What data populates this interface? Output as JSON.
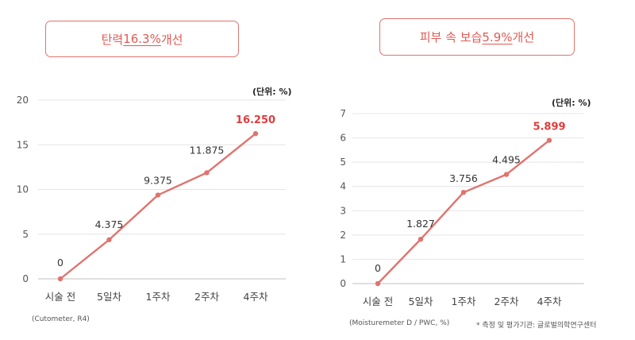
{
  "colors": {
    "accent": "#e0736e",
    "highlight": "#e03c3c"
  },
  "chart_data": [
    {
      "type": "line",
      "header": {
        "prefix": "탄력 ",
        "highlight": "16.3%",
        "suffix": " 개선"
      },
      "unit_label": "(단위: %)",
      "source": "(Cutometer, R4)",
      "categories": [
        "시술 전",
        "5일차",
        "1주차",
        "2주차",
        "4주차"
      ],
      "values": [
        0,
        4.375,
        9.375,
        11.875,
        16.25
      ],
      "data_labels": [
        "0",
        "4.375",
        "9.375",
        "11.875",
        "16.250"
      ],
      "highlighted_label_index": 4,
      "ylim": [
        0,
        20
      ],
      "yticks": [
        "0",
        "5",
        "10",
        "15",
        "20"
      ],
      "grid": true
    },
    {
      "type": "line",
      "header": {
        "prefix": "피부 속 보습 ",
        "highlight": "5.9%",
        "suffix": " 개선"
      },
      "unit_label": "(단위: %)",
      "source": "(Moisturemeter D / PWC, %)",
      "categories": [
        "시술 전",
        "5일차",
        "1주차",
        "2주차",
        "4주차"
      ],
      "values": [
        0,
        1.827,
        3.756,
        4.495,
        5.899
      ],
      "data_labels": [
        "0",
        "1.827",
        "3.756",
        "4.495",
        "5.899"
      ],
      "highlighted_label_index": 4,
      "ylim": [
        0,
        7
      ],
      "yticks": [
        "0",
        "1",
        "2",
        "3",
        "4",
        "5",
        "6",
        "7"
      ],
      "grid": true
    }
  ],
  "footnote": "* 측정 및 평가기관: 글로벌의학연구센터"
}
